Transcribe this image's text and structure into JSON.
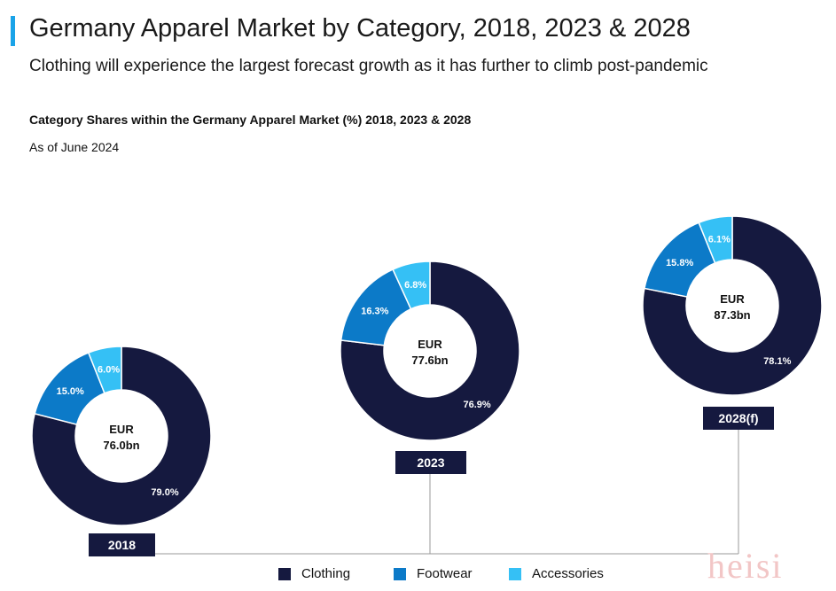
{
  "header": {
    "title": "Germany Apparel Market by Category, 2018, 2023 & 2028",
    "subtitle": "Clothing will experience the largest forecast growth as it has further to climb post-pandemic",
    "accent_color": "#1aa3e8"
  },
  "chart_data": {
    "type": "pie",
    "title": "Category Shares within the Germany Apparel Market (%) 2018, 2023 & 2028",
    "note": "As of June 2024",
    "categories": [
      "Clothing",
      "Footwear",
      "Accessories"
    ],
    "colors": [
      "#15193f",
      "#0c7ac8",
      "#35c0f5"
    ],
    "legend_position": "bottom",
    "donuts": [
      {
        "year": "2018",
        "center_line1": "EUR",
        "center_line2": "76.0bn",
        "values": [
          79.0,
          15.0,
          6.0
        ],
        "labels": [
          "79.0%",
          "15.0%",
          "6.0%"
        ]
      },
      {
        "year": "2023",
        "center_line1": "EUR",
        "center_line2": "77.6bn",
        "values": [
          76.9,
          16.3,
          6.8
        ],
        "labels": [
          "76.9%",
          "16.3%",
          "6.8%"
        ]
      },
      {
        "year": "2028(f)",
        "center_line1": "EUR",
        "center_line2": "87.3bn",
        "values": [
          78.1,
          15.8,
          6.1
        ],
        "labels": [
          "78.1%",
          "15.8%",
          "6.1%"
        ]
      }
    ]
  },
  "legend": {
    "items": [
      {
        "label": "Clothing",
        "color": "#15193f"
      },
      {
        "label": "Footwear",
        "color": "#0c7ac8"
      },
      {
        "label": "Accessories",
        "color": "#35c0f5"
      }
    ]
  },
  "watermark": "heisi"
}
